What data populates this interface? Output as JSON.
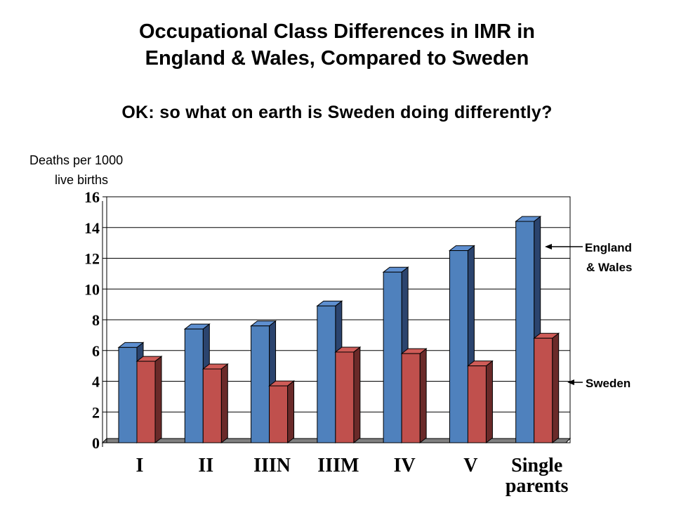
{
  "title_line1": "Occupational Class Differences in IMR in",
  "title_line2": "England & Wales, Compared to Sweden",
  "subtitle": "OK: so what on earth is Sweden doing differently?",
  "ylabel_line1": "Deaths per 1000",
  "ylabel_line2": "live births",
  "chart_data": {
    "type": "bar",
    "categories": [
      [
        "I"
      ],
      [
        "II"
      ],
      [
        "IIIN"
      ],
      [
        "IIIM"
      ],
      [
        "IV"
      ],
      [
        "V"
      ],
      [
        "Single",
        "parents"
      ]
    ],
    "ylim": [
      0,
      16
    ],
    "yticks": [
      0,
      2,
      4,
      6,
      8,
      10,
      12,
      14,
      16
    ],
    "grid": true,
    "series": [
      {
        "name_lines": [
          "England",
          "& Wales"
        ],
        "values": [
          6.2,
          7.4,
          7.6,
          8.9,
          11.1,
          12.5,
          14.4
        ],
        "color": "#4F81BD",
        "top": "#5E8FD0",
        "side": "#2B446E"
      },
      {
        "name_lines": [
          "Sweden"
        ],
        "values": [
          5.3,
          4.8,
          3.7,
          5.9,
          5.8,
          5.0,
          6.8
        ],
        "color": "#C0504D",
        "top": "#CF5C58",
        "side": "#6A2A29"
      }
    ]
  }
}
